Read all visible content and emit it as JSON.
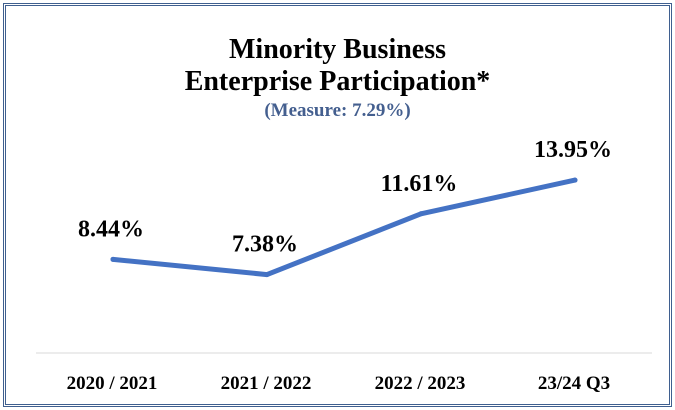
{
  "chart_data": {
    "type": "line",
    "title_lines": [
      "Minority Business",
      "Enterprise Participation*"
    ],
    "subtitle": "(Measure: 7.29%)",
    "categories": [
      "2020 / 2021",
      "2021 / 2022",
      "2022 / 2023",
      "23/24 Q3"
    ],
    "series": [
      {
        "values": [
          8.44,
          7.38,
          11.61,
          13.95
        ],
        "labels": [
          "8.44%",
          "7.38%",
          "11.61%",
          "13.95%"
        ],
        "color": "#4472c4"
      }
    ],
    "xlabel": "",
    "ylabel": "",
    "grid": false,
    "legend": "none"
  }
}
